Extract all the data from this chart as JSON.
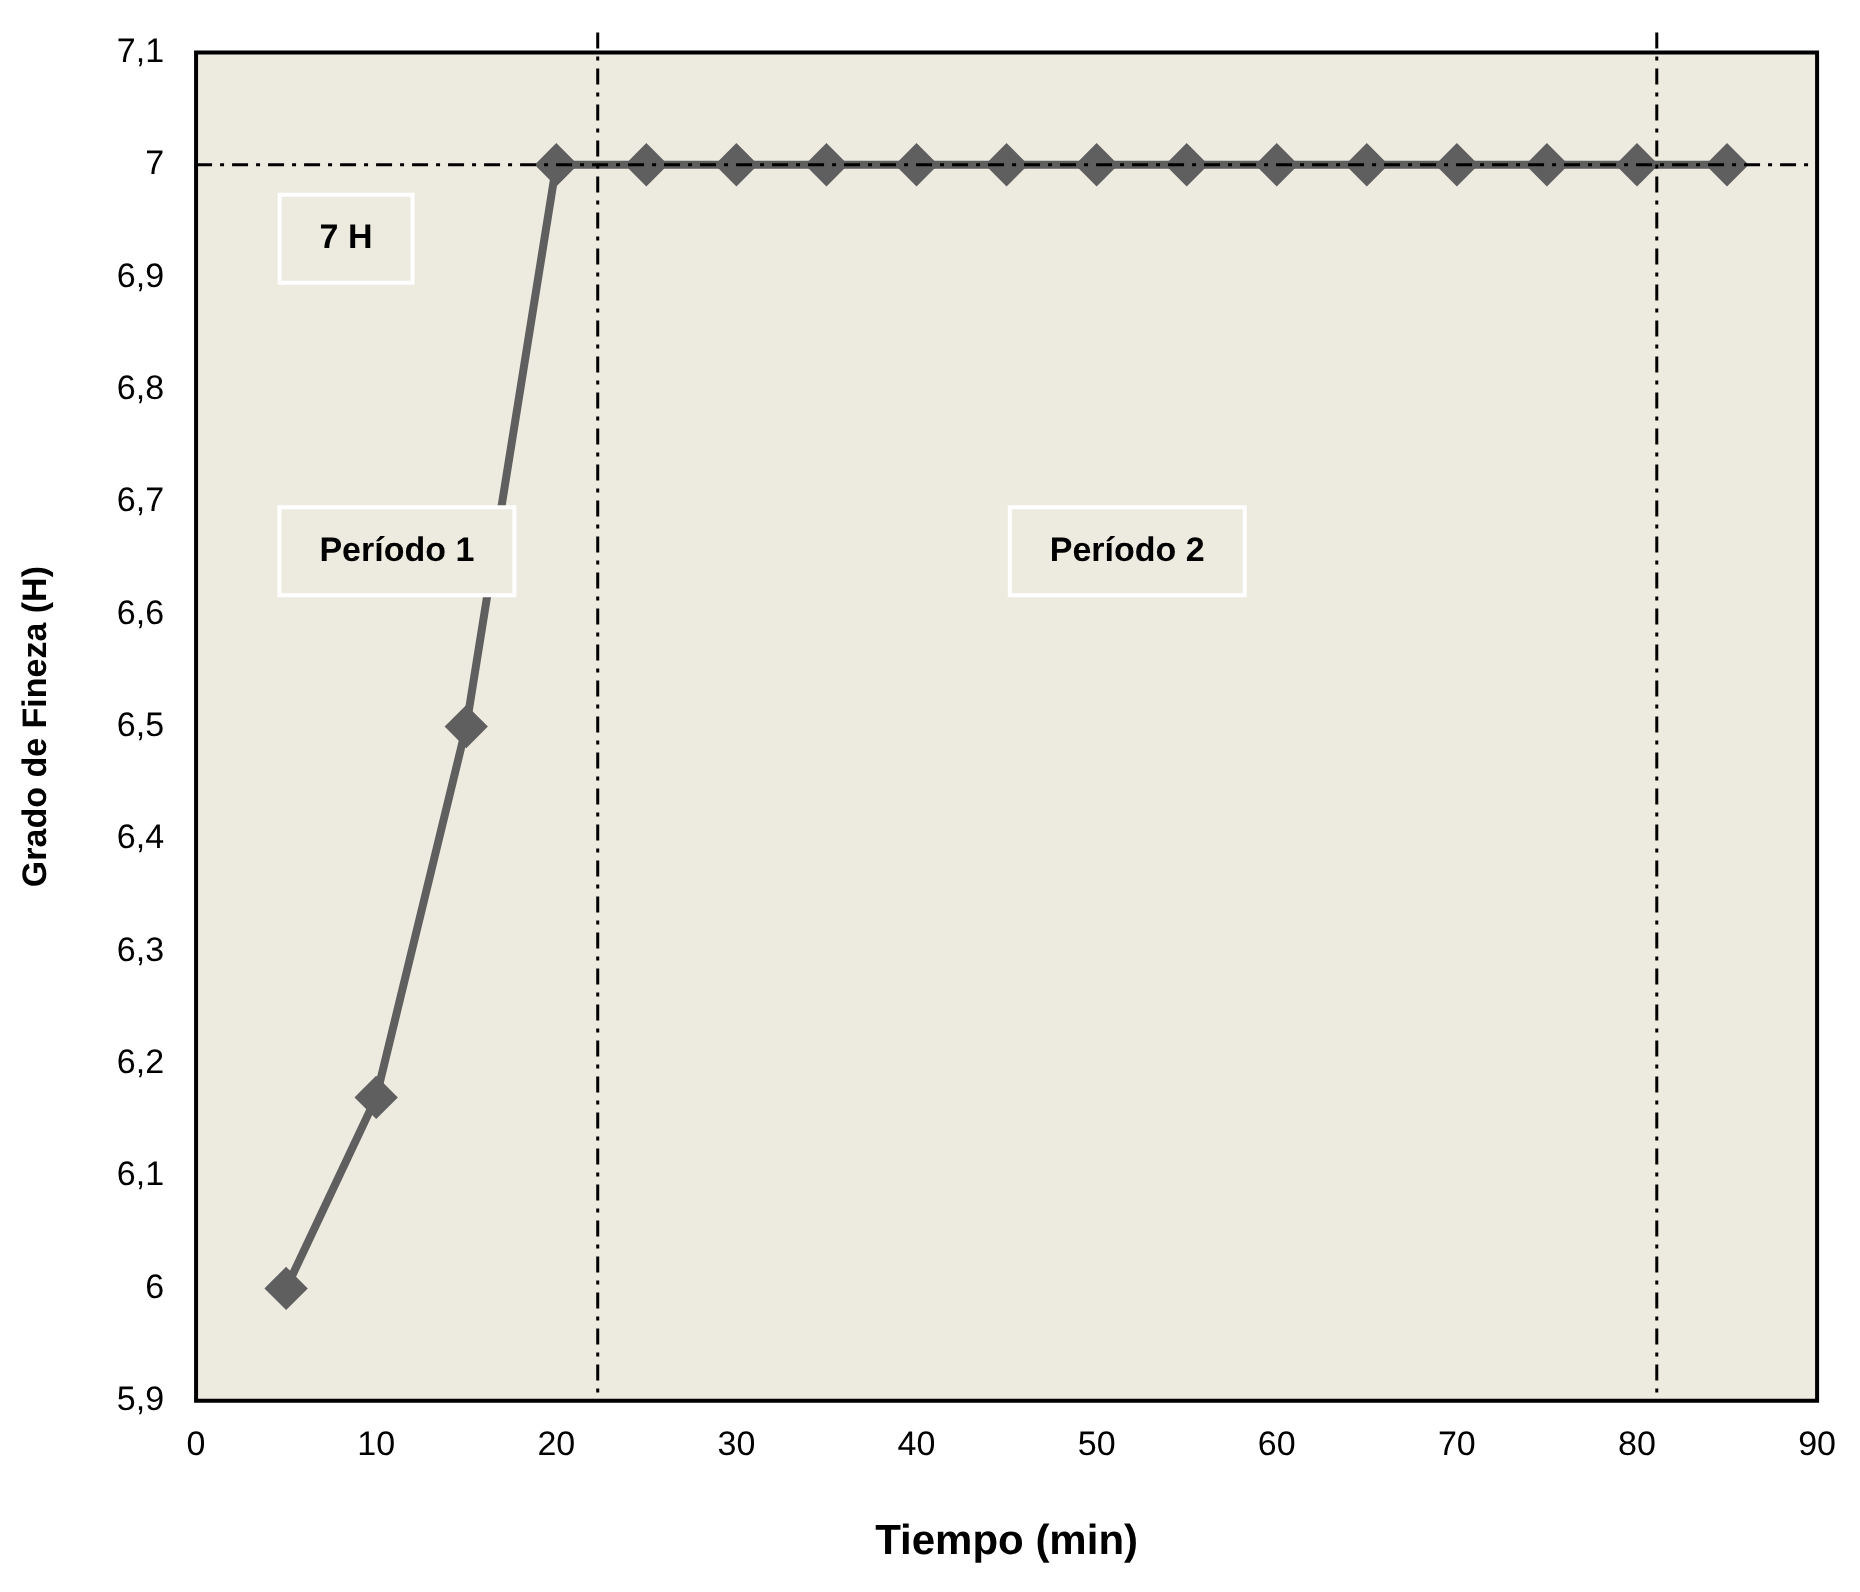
{
  "chart_data": {
    "type": "line",
    "xlabel": "Tiempo (min)",
    "ylabel": "Grado de Fineza (H)",
    "x": [
      5,
      10,
      15,
      20,
      25,
      30,
      35,
      40,
      45,
      50,
      55,
      60,
      65,
      70,
      75,
      80,
      85
    ],
    "series": [
      {
        "color": "#5f5f5f",
        "values": [
          6,
          6.17,
          6.5,
          7,
          7,
          7,
          7,
          7,
          7,
          7,
          7,
          7,
          7,
          7,
          7,
          7,
          7
        ]
      }
    ],
    "xlim": [
      0,
      90
    ],
    "xticks": [
      0,
      10,
      20,
      30,
      40,
      50,
      60,
      70,
      80,
      90
    ],
    "ylim": [
      5.9,
      7.1
    ],
    "yticks": [
      {
        "value": 5.9,
        "label": "5,9"
      },
      {
        "value": 6,
        "label": "6"
      },
      {
        "value": 6.1,
        "label": "6,1"
      },
      {
        "value": 6.2,
        "label": "6,2"
      },
      {
        "value": 6.3,
        "label": "6,3"
      },
      {
        "value": 6.4,
        "label": "6,4"
      },
      {
        "value": 6.5,
        "label": "6,5"
      },
      {
        "value": 6.6,
        "label": "6,6"
      },
      {
        "value": 6.7,
        "label": "6,7"
      },
      {
        "value": 6.8,
        "label": "6,8"
      },
      {
        "value": 6.9,
        "label": "6,9"
      },
      {
        "value": 7,
        "label": "7"
      },
      {
        "value": 7.1,
        "label": "7,1"
      }
    ],
    "ref_lines": [
      {
        "axis": "y",
        "value": 7,
        "label": "7 H",
        "color": "#000000",
        "line_style": "dashdot"
      },
      {
        "axis": "x",
        "value": 22.3,
        "color": "#000000",
        "line_style": "dashdot"
      },
      {
        "axis": "x",
        "value": 81.1,
        "color": "#000000",
        "line_style": "dashdot"
      }
    ],
    "annotations": [
      "Período 1",
      "Período 2"
    ],
    "grid": false,
    "legend": false,
    "marker": "diamond",
    "line_style": "solid"
  }
}
